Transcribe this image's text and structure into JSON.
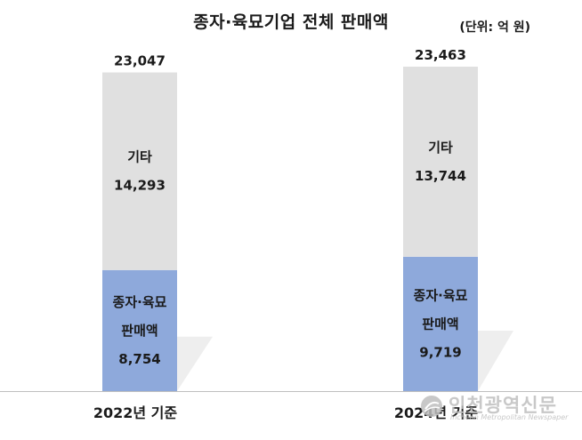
{
  "chart_data": {
    "type": "bar",
    "stacked": true,
    "title": "종자·육묘기업 전체 판매액",
    "unit_label": "(단위: 억 원)",
    "categories": [
      "2022년 기준",
      "2024년 기준"
    ],
    "totals": [
      "23,047",
      "23,463"
    ],
    "series": [
      {
        "name": "종자·육묘 판매액",
        "label_lines": [
          "종자·육묘",
          "판매액"
        ],
        "values": [
          8754,
          9719
        ],
        "value_labels": [
          "8,754",
          "9,719"
        ],
        "color": "#8EA9DB"
      },
      {
        "name": "기타",
        "label_lines": [
          "기타"
        ],
        "values": [
          14293,
          13744
        ],
        "value_labels": [
          "14,293",
          "13,744"
        ],
        "color": "#E0E0E0"
      }
    ],
    "ylim": [
      0,
      23463
    ],
    "grid": false,
    "legend": "none"
  },
  "watermark": {
    "name": "인천광역신문",
    "subtitle": "Incheon Metropolitan Newspaper",
    "logo_icon": "globe-logo-icon"
  }
}
